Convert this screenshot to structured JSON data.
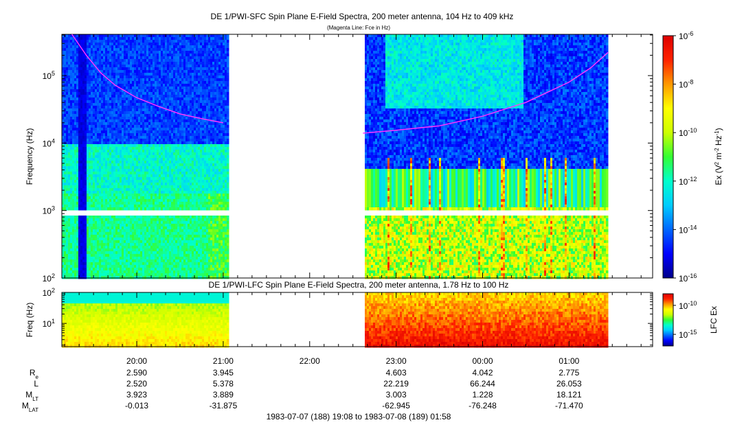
{
  "colors": {
    "scale": [
      "#00008b",
      "#0000ff",
      "#0066ff",
      "#00ccff",
      "#00ffcc",
      "#33ff33",
      "#ccff00",
      "#ffff00",
      "#ff9900",
      "#ff2200",
      "#dd0000"
    ],
    "fce_line": "#ff33ff",
    "data_gap": "#ffffff"
  },
  "chart_data": [
    {
      "type": "heatmap",
      "title": "DE 1/PWI-SFC  Spin Plane E-Field Spectra, 200 meter antenna, 104 Hz to 409 kHz",
      "subtitle": "(Magenta Line: Fce in Hz)",
      "ylabel": "Frequency (Hz)",
      "y_scale": "log",
      "ylim": [
        100,
        409000
      ],
      "y_ticks": [
        {
          "value": 100,
          "mant": "10",
          "exp": "2"
        },
        {
          "value": 1000,
          "mant": "10",
          "exp": "3"
        },
        {
          "value": 10000,
          "mant": "10",
          "exp": "4"
        },
        {
          "value": 100000,
          "mant": "10",
          "exp": "5"
        }
      ],
      "colorbar": {
        "label": "Ex (V",
        "label_sup1": "2",
        "label_mid": " m",
        "label_sup2": "-2",
        "label_mid2": " Hz",
        "label_sup3": "-1",
        "label_end": ")",
        "scale": "log",
        "range": [
          1e-16,
          1e-06
        ],
        "ticks": [
          {
            "value": 1e-06,
            "mant": "10",
            "exp": "-6"
          },
          {
            "value": 1e-08,
            "mant": "10",
            "exp": "-8"
          },
          {
            "value": 1e-10,
            "mant": "10",
            "exp": "-10"
          },
          {
            "value": 1e-12,
            "mant": "10",
            "exp": "-12"
          },
          {
            "value": 1e-14,
            "mant": "10",
            "exp": "-14"
          },
          {
            "value": 1e-16,
            "mant": "10",
            "exp": "-16"
          }
        ]
      },
      "data_coverage": [
        [
          "19:08",
          "21:03"
        ],
        [
          "22:37",
          "01:27"
        ]
      ],
      "series": [
        {
          "name": "Fce",
          "points": [
            [
              "19:15",
              409000
            ],
            [
              "19:25",
              200000
            ],
            [
              "19:35",
              110000
            ],
            [
              "19:45",
              72000
            ],
            [
              "20:00",
              47000
            ],
            [
              "20:15",
              35000
            ],
            [
              "20:30",
              27000
            ],
            [
              "20:45",
              23000
            ],
            [
              "21:00",
              20000
            ]
          ]
        },
        {
          "name": "Fce",
          "points": [
            [
              "22:37",
              14000
            ],
            [
              "23:00",
              15500
            ],
            [
              "23:30",
              18000
            ],
            [
              "00:00",
              25000
            ],
            [
              "00:30",
              40000
            ],
            [
              "01:00",
              80000
            ],
            [
              "01:15",
              130000
            ],
            [
              "01:27",
              220000
            ]
          ]
        }
      ]
    },
    {
      "type": "heatmap",
      "title": "DE 1/PWI-LFC  Spin Plane E-Field Spectra, 200 meter antenna, 1.78 Hz to 100 Hz",
      "ylabel": "Freq (Hz)",
      "y_scale": "log",
      "ylim": [
        1.78,
        100
      ],
      "y_ticks": [
        {
          "value": 10,
          "mant": "10",
          "exp": "1"
        },
        {
          "value": 100,
          "mant": "10",
          "exp": "2"
        }
      ],
      "colorbar": {
        "label": "LFC Ex",
        "scale": "log",
        "range": [
          1e-17,
          1e-08
        ],
        "ticks": [
          {
            "value": 1e-10,
            "mant": "10",
            "exp": "-10"
          },
          {
            "value": 1e-15,
            "mant": "10",
            "exp": "-15"
          }
        ]
      },
      "data_coverage": [
        [
          "19:08",
          "21:03"
        ],
        [
          "22:37",
          "01:27"
        ]
      ]
    }
  ],
  "time_axis": {
    "start": "19:08",
    "end": "01:58",
    "major_ticks": [
      "20:00",
      "21:00",
      "22:00",
      "23:00",
      "00:00",
      "01:00"
    ],
    "minor_interval_minutes": 10
  },
  "orbit": {
    "rows": [
      {
        "label": "R",
        "label_sub": "e",
        "values": [
          "2.590",
          "3.945",
          "4.603",
          "4.042",
          "2.775"
        ]
      },
      {
        "label": "L",
        "label_sub": "",
        "values": [
          "2.520",
          "5.378",
          "22.219",
          "66.244",
          "26.053"
        ]
      },
      {
        "label": "M",
        "label_sub": "LT",
        "values": [
          "3.923",
          "3.889",
          "3.003",
          "1.228",
          "18.121"
        ]
      },
      {
        "label": "M",
        "label_sub": "LAT",
        "values": [
          "-0.013",
          "-31.875",
          "-62.945",
          "-76.248",
          "-71.470"
        ]
      }
    ],
    "columns": [
      "20:00",
      "21:00",
      "23:00",
      "00:00",
      "01:00"
    ]
  },
  "footer": "1983-07-07 (188) 19:08 to 1983-07-08 (189) 01:58"
}
